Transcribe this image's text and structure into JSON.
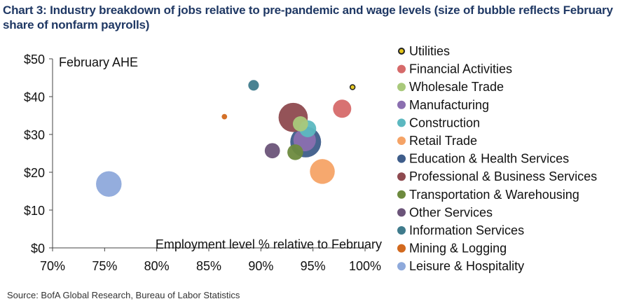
{
  "header": {
    "title": "Chart 3: Industry breakdown of jobs relative to pre-pandemic and wage levels (size of bubble reflects February share of nonfarm payrolls)"
  },
  "footer": {
    "source": "Source: BofA Global Research, Bureau of Labor Statistics"
  },
  "chart_data": {
    "type": "scatter",
    "subtype": "bubble",
    "title": "Chart 3: Industry breakdown of jobs relative to pre-pandemic and wage levels (size of bubble reflects February share of nonfarm payrolls)",
    "xlabel": "Employment level % relative to February",
    "ylabel": "February AHE",
    "xlim": [
      70,
      100
    ],
    "ylim": [
      0,
      50
    ],
    "x_ticks": [
      70,
      75,
      80,
      85,
      90,
      95,
      100
    ],
    "x_tick_labels": [
      "70%",
      "75%",
      "80%",
      "85%",
      "90%",
      "95%",
      "100%"
    ],
    "y_ticks": [
      0,
      10,
      20,
      30,
      40,
      50
    ],
    "y_tick_labels": [
      "$0",
      "$10",
      "$20",
      "$30",
      "$40",
      "$50"
    ],
    "grid": false,
    "legend_position": "right",
    "series": [
      {
        "name": "Utilities",
        "x": 98.8,
        "y": 42.5,
        "size": 0.4,
        "color": "#e6c619"
      },
      {
        "name": "Financial Activities",
        "x": 97.8,
        "y": 36.8,
        "size": 5.6,
        "color": "#d66a6a"
      },
      {
        "name": "Wholesale Trade",
        "x": 93.8,
        "y": 32.8,
        "size": 3.9,
        "color": "#a9c97b"
      },
      {
        "name": "Manufacturing",
        "x": 94.2,
        "y": 28.5,
        "size": 8.5,
        "color": "#8b6fb0"
      },
      {
        "name": "Construction",
        "x": 94.5,
        "y": 31.5,
        "size": 4.8,
        "color": "#5cb8c0"
      },
      {
        "name": "Retail Trade",
        "x": 95.9,
        "y": 20.2,
        "size": 10.4,
        "color": "#f5a366"
      },
      {
        "name": "Education & Health Services",
        "x": 94.3,
        "y": 28.0,
        "size": 16.0,
        "color": "#3e5d8a"
      },
      {
        "name": "Professional & Business Services",
        "x": 93.1,
        "y": 34.5,
        "size": 14.4,
        "color": "#8e4a4f"
      },
      {
        "name": "Transportation & Warehousing",
        "x": 93.3,
        "y": 25.3,
        "size": 4.2,
        "color": "#6d8a3e"
      },
      {
        "name": "Other Services",
        "x": 91.1,
        "y": 25.7,
        "size": 3.9,
        "color": "#6b5479"
      },
      {
        "name": "Information Services",
        "x": 89.3,
        "y": 43.0,
        "size": 1.9,
        "color": "#3f7b8c"
      },
      {
        "name": "Mining & Logging",
        "x": 86.5,
        "y": 34.7,
        "size": 0.5,
        "color": "#d2691e"
      },
      {
        "name": "Leisure & Hospitality",
        "x": 75.4,
        "y": 16.9,
        "size": 11.0,
        "color": "#8ea9db"
      }
    ]
  }
}
